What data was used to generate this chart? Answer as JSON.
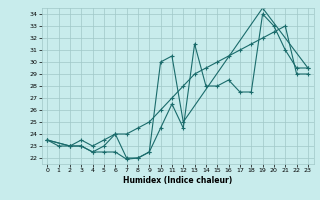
{
  "xlabel": "Humidex (Indice chaleur)",
  "ylabel": "",
  "xlim": [
    -0.5,
    23.5
  ],
  "ylim": [
    21.5,
    34.5
  ],
  "yticks": [
    22,
    23,
    24,
    25,
    26,
    27,
    28,
    29,
    30,
    31,
    32,
    33,
    34
  ],
  "xticks": [
    0,
    1,
    2,
    3,
    4,
    5,
    6,
    7,
    8,
    9,
    10,
    11,
    12,
    13,
    14,
    15,
    16,
    17,
    18,
    19,
    20,
    21,
    22,
    23
  ],
  "bg_color": "#c8ecec",
  "grid_color": "#a0c8c8",
  "line_color": "#1a6b6b",
  "line1_x": [
    0,
    1,
    2,
    3,
    4,
    5,
    6,
    7,
    8,
    9,
    10,
    11,
    12,
    13,
    14,
    15,
    16,
    17,
    18,
    19,
    20,
    21,
    22,
    23
  ],
  "line1_y": [
    23.5,
    23.0,
    23.0,
    23.0,
    22.5,
    22.5,
    22.5,
    21.9,
    22.0,
    22.5,
    24.5,
    26.5,
    24.5,
    31.5,
    28.0,
    28.0,
    28.5,
    27.5,
    27.5,
    34.0,
    33.0,
    31.0,
    29.5,
    29.5
  ],
  "line2_x": [
    0,
    2,
    3,
    4,
    5,
    6,
    7,
    8,
    9,
    10,
    11,
    12,
    13,
    14,
    15,
    16,
    17,
    18,
    19,
    20,
    21,
    22,
    23
  ],
  "line2_y": [
    23.5,
    23.0,
    23.5,
    23.0,
    23.5,
    24.0,
    24.0,
    24.5,
    25.0,
    26.0,
    27.0,
    28.0,
    29.0,
    29.5,
    30.0,
    30.5,
    31.0,
    31.5,
    32.0,
    32.5,
    33.0,
    29.0,
    29.0
  ],
  "line3_x": [
    0,
    2,
    3,
    4,
    5,
    6,
    7,
    8,
    9,
    10,
    11,
    12,
    19,
    23
  ],
  "line3_y": [
    23.5,
    23.0,
    23.0,
    22.5,
    23.0,
    24.0,
    22.0,
    22.0,
    22.5,
    30.0,
    30.5,
    25.0,
    34.5,
    29.5
  ]
}
